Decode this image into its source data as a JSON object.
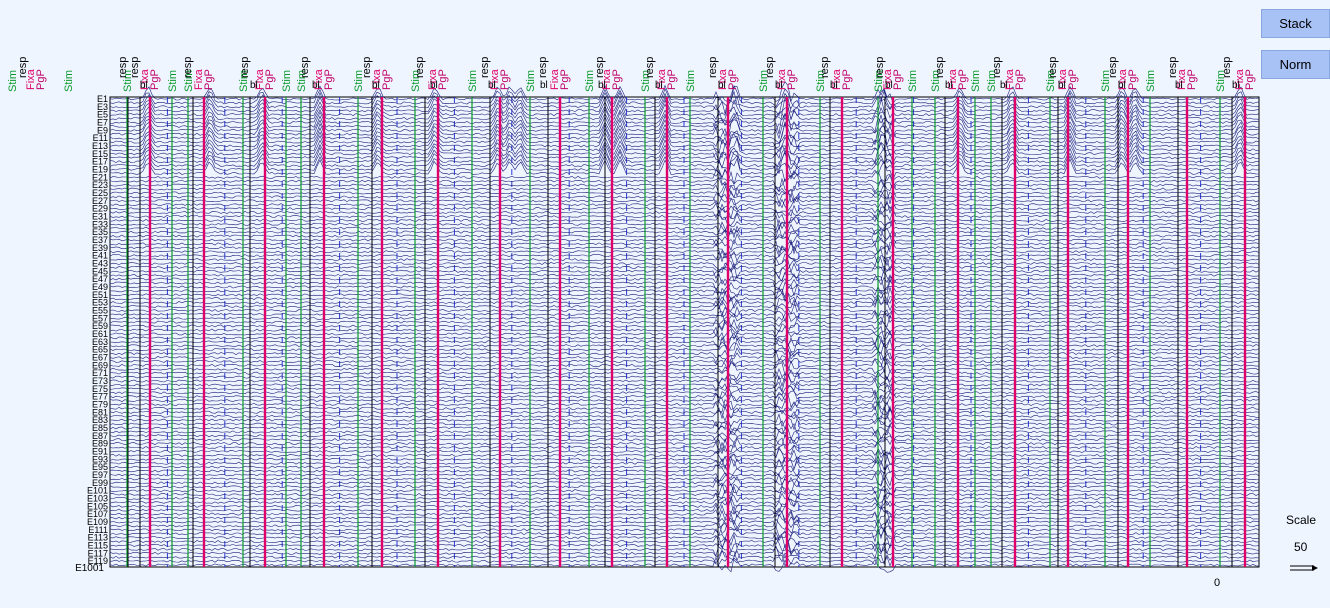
{
  "controls": {
    "stack_label": "Stack",
    "norm_label": "Norm",
    "scale_title": "Scale",
    "scale_value": "50",
    "time_zero": "0"
  },
  "event_labels": {
    "stim": "Stim",
    "resp": "resp",
    "fixa": "Fixa",
    "pgp": "PgP",
    "blink_partial": "bl"
  },
  "channel_labels": {
    "last": "E1001"
  },
  "colors": {
    "background": "#eef5fe",
    "trace": "#1c1f7a",
    "stim": "#0a9a2c",
    "resp": "#000000",
    "fixa": "#e0006a",
    "pgp": "#c0006a",
    "epoch_boundary": "#2b37d6",
    "button": "#a9c2f5"
  }
}
